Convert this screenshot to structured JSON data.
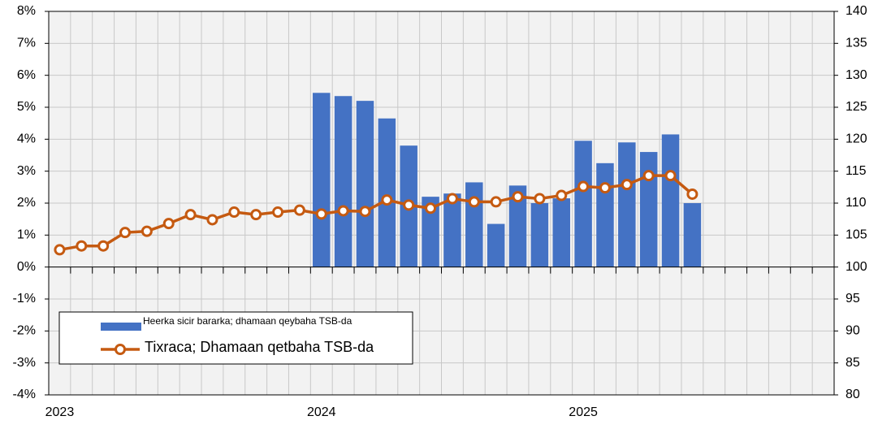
{
  "chart_data": {
    "type": "bar_line",
    "categories": [
      "2023",
      null,
      null,
      null,
      null,
      null,
      null,
      null,
      null,
      null,
      null,
      null,
      "2024",
      null,
      null,
      null,
      null,
      null,
      null,
      null,
      null,
      null,
      null,
      null,
      "2025",
      null,
      null,
      null,
      null,
      null,
      null,
      null,
      null,
      null,
      null,
      null
    ],
    "series": [
      {
        "name": "Heerka sicir bararka; dhamaan qeybaha TSB-da",
        "type": "bar",
        "color": "#4472c4",
        "values": [
          null,
          null,
          null,
          null,
          null,
          null,
          null,
          null,
          null,
          null,
          null,
          null,
          5.45,
          5.35,
          5.2,
          4.65,
          3.8,
          2.2,
          2.3,
          2.65,
          1.35,
          2.55,
          2.0,
          2.15,
          3.95,
          3.25,
          3.9,
          3.6,
          4.15,
          2.0,
          null,
          null,
          null,
          null,
          null,
          null
        ]
      },
      {
        "name": "Tixraca; Dhamaan qetbaha TSB-da",
        "type": "line",
        "axis": "y2",
        "color": "#c55a11",
        "values": [
          102.7,
          103.3,
          103.3,
          105.4,
          105.6,
          106.8,
          108.2,
          107.4,
          108.6,
          108.2,
          108.6,
          108.9,
          108.3,
          108.8,
          108.7,
          110.5,
          109.7,
          109.2,
          110.7,
          110.2,
          110.2,
          111.0,
          110.7,
          111.2,
          112.6,
          112.4,
          112.9,
          114.3,
          114.3,
          111.4,
          null,
          null,
          null,
          null,
          null,
          null
        ]
      }
    ],
    "ylim": [
      -4,
      8
    ],
    "yticks": [
      {
        "value": -4,
        "label": "-4%"
      },
      {
        "value": -3,
        "label": "-3%"
      },
      {
        "value": -2,
        "label": "-2%"
      },
      {
        "value": -1,
        "label": "-1%"
      },
      {
        "value": 0,
        "label": "0%"
      },
      {
        "value": 1,
        "label": "1%"
      },
      {
        "value": 2,
        "label": "2%"
      },
      {
        "value": 3,
        "label": "3%"
      },
      {
        "value": 4,
        "label": "4%"
      },
      {
        "value": 5,
        "label": "5%"
      },
      {
        "value": 6,
        "label": "6%"
      },
      {
        "value": 7,
        "label": "7%"
      },
      {
        "value": 8,
        "label": "8%"
      }
    ],
    "y2lim": [
      80,
      140
    ],
    "y2ticks": [
      80,
      85,
      90,
      95,
      100,
      105,
      110,
      115,
      120,
      125,
      130,
      135,
      140
    ],
    "grid": true
  }
}
